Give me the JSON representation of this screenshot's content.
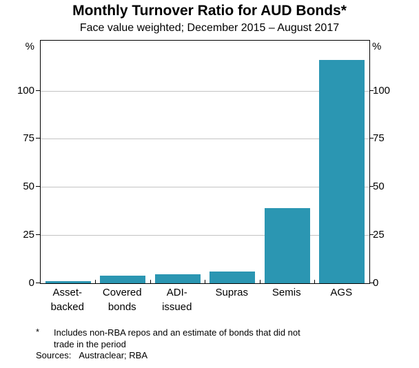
{
  "header": {
    "title": "Monthly Turnover Ratio for AUD Bonds*",
    "subtitle": "Face value weighted; December 2015 – August 2017"
  },
  "chart_data": {
    "type": "bar",
    "title": "Monthly Turnover Ratio for AUD Bonds*",
    "subtitle": "Face value weighted; December 2015 – August 2017",
    "categories": [
      "Asset-\nbacked",
      "Covered\nbonds",
      "ADI-\nissued",
      "Supras",
      "Semis",
      "AGS"
    ],
    "values": [
      1,
      4,
      4.5,
      6,
      39,
      116
    ],
    "xlabel": "",
    "ylabel_left": "%",
    "ylabel_right": "%",
    "ylim": [
      0,
      126
    ],
    "yticks": [
      0,
      25,
      50,
      75,
      100
    ],
    "grid": true,
    "legend": "none",
    "bar_color": "#2B96B2",
    "grid_color": "#C3C3C3",
    "axis_color": "#000000"
  },
  "footnote": {
    "marker": "*",
    "text": "Includes non-RBA repos and an estimate of bonds that did not\ntrade in the period",
    "sources_label": "Sources:",
    "sources_value": "Austraclear; RBA"
  }
}
